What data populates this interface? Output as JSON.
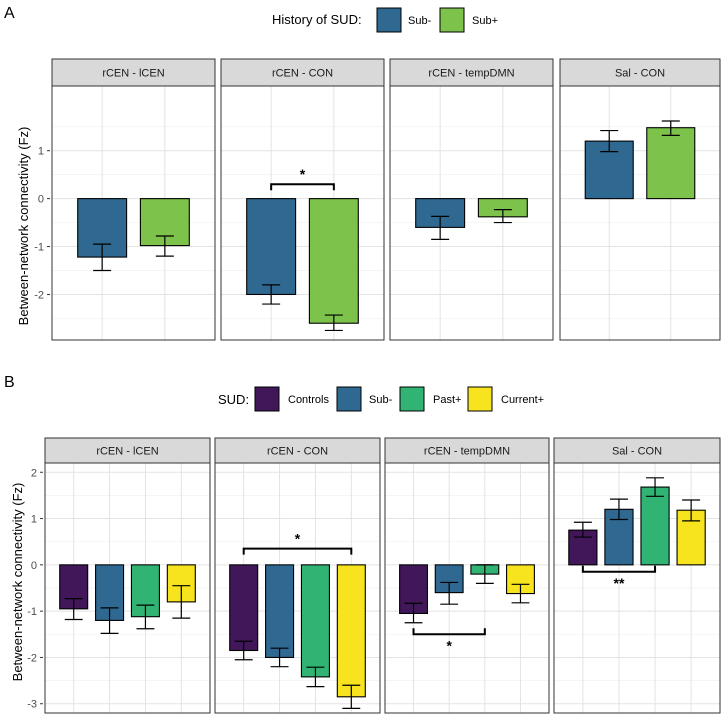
{
  "panels": [
    {
      "panel_label": "A",
      "legend": {
        "title": "History of SUD:",
        "entries": [
          {
            "name": "Sub-",
            "color": "#2F6890"
          },
          {
            "name": "Sub+",
            "color": "#7CC24B"
          }
        ]
      }
    },
    {
      "panel_label": "B",
      "legend": {
        "title": "SUD:",
        "entries": [
          {
            "name": "Controls",
            "color": "#41175A"
          },
          {
            "name": "Sub-",
            "color": "#2F6890"
          },
          {
            "name": "Past+",
            "color": "#31B473"
          },
          {
            "name": "Current+",
            "color": "#F7E31E"
          }
        ]
      }
    }
  ],
  "chart_data": [
    {
      "type": "bar",
      "ylabel": "Between-network connectivity (Fz)",
      "ylim": [
        -2.95,
        2.35
      ],
      "yticks": [
        -2,
        -1,
        0,
        1
      ],
      "grid": true,
      "series_names": [
        "Sub-",
        "Sub+"
      ],
      "facets": [
        {
          "title": "rCEN - lCEN",
          "values": [
            -1.22,
            -0.98
          ],
          "err_low": [
            -1.5,
            -1.2
          ],
          "err_high": [
            -0.95,
            -0.78
          ],
          "annotations": []
        },
        {
          "title": "rCEN - CON",
          "values": [
            -2.0,
            -2.6
          ],
          "err_low": [
            -2.2,
            -2.75
          ],
          "err_high": [
            -1.8,
            -2.43
          ],
          "annotations": [
            {
              "from": 0,
              "to": 1,
              "y": 0.3,
              "label": "*"
            }
          ]
        },
        {
          "title": "rCEN - tempDMN",
          "values": [
            -0.6,
            -0.38
          ],
          "err_low": [
            -0.85,
            -0.5
          ],
          "err_high": [
            -0.37,
            -0.23
          ],
          "annotations": []
        },
        {
          "title": "Sal - CON",
          "values": [
            1.2,
            1.48
          ],
          "err_low": [
            0.98,
            1.32
          ],
          "err_high": [
            1.42,
            1.62
          ],
          "annotations": []
        }
      ]
    },
    {
      "type": "bar",
      "ylabel": "Between-network connectivity (Fz)",
      "ylim": [
        -3.2,
        2.2
      ],
      "yticks": [
        -3,
        -2,
        -1,
        0,
        1,
        2
      ],
      "grid": true,
      "series_names": [
        "Controls",
        "Sub-",
        "Past+",
        "Current+"
      ],
      "facets": [
        {
          "title": "rCEN - lCEN",
          "values": [
            -0.95,
            -1.2,
            -1.12,
            -0.8
          ],
          "err_low": [
            -1.18,
            -1.48,
            -1.38,
            -1.15
          ],
          "err_high": [
            -0.73,
            -0.93,
            -0.87,
            -0.45
          ],
          "annotations": []
        },
        {
          "title": "rCEN - CON",
          "values": [
            -1.85,
            -2.0,
            -2.42,
            -2.85
          ],
          "err_low": [
            -2.05,
            -2.2,
            -2.63,
            -3.1
          ],
          "err_high": [
            -1.65,
            -1.8,
            -2.21,
            -2.6
          ],
          "annotations": [
            {
              "from": 0,
              "to": 3,
              "y": 0.35,
              "label": "*"
            }
          ]
        },
        {
          "title": "rCEN - tempDMN",
          "values": [
            -1.05,
            -0.6,
            -0.2,
            -0.62
          ],
          "err_low": [
            -1.25,
            -0.85,
            -0.4,
            -0.82
          ],
          "err_high": [
            -0.83,
            -0.38,
            0.0,
            -0.42
          ],
          "annotations": [
            {
              "from": 0,
              "to": 2,
              "y": -1.5,
              "label": "*"
            }
          ]
        },
        {
          "title": "Sal - CON",
          "values": [
            0.75,
            1.2,
            1.68,
            1.18
          ],
          "err_low": [
            0.6,
            0.98,
            1.48,
            0.95
          ],
          "err_high": [
            0.92,
            1.42,
            1.88,
            1.4
          ],
          "annotations": [
            {
              "from": 0,
              "to": 2,
              "y": -0.15,
              "label": "**"
            }
          ]
        }
      ]
    }
  ]
}
